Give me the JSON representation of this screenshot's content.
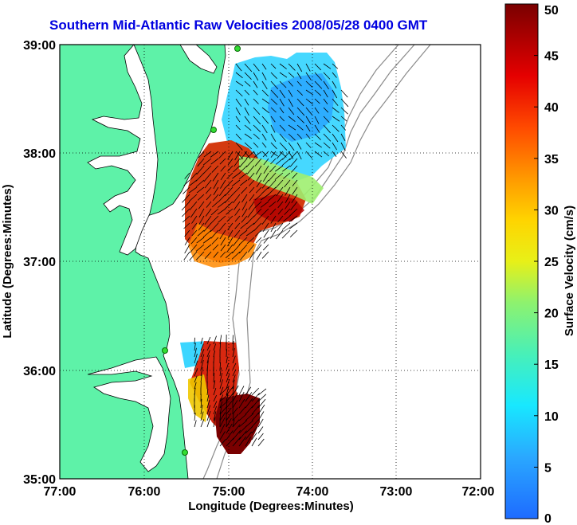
{
  "title": "Southern Mid-Atlantic Raw Velocities 2008/05/28 0400 GMT",
  "map": {
    "xlabel": "Longitude (Degrees:Minutes)",
    "ylabel": "Latitude (Degrees:Minutes)",
    "lon_ticks": [
      "77:00",
      "76:00",
      "75:00",
      "74:00",
      "73:00",
      "72:00"
    ],
    "lat_ticks": [
      "39:00",
      "38:00",
      "37:00",
      "36:00",
      "35:00"
    ],
    "lon_range": [
      -77,
      -72
    ],
    "lat_range": [
      35,
      39
    ]
  },
  "colorbar": {
    "label": "Surface Velocity (cm/s)",
    "ticks": [
      "0",
      "5",
      "10",
      "15",
      "20",
      "25",
      "30",
      "35",
      "40",
      "45",
      "50"
    ],
    "range": [
      0,
      50
    ]
  },
  "colors": {
    "land": "#5ef2a8",
    "title": "#0000e0"
  }
}
